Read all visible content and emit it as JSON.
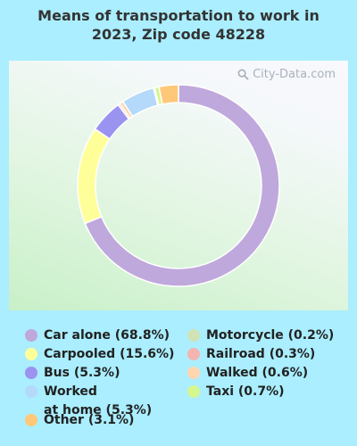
{
  "title_lines": [
    "Means of transportation to work in",
    "2023, Zip code 48228"
  ],
  "watermark": "City-Data.com",
  "chart_data": {
    "type": "pie",
    "title": "Means of transportation to work in 2023, Zip code 48228",
    "donut": true,
    "legend_position": "bottom",
    "slices": [
      {
        "label": "Car alone",
        "value": 68.8,
        "color": "#bfa8db",
        "legend": "Car alone (68.8%)"
      },
      {
        "label": "Carpooled",
        "value": 15.6,
        "color": "#ffff99",
        "legend": "Carpooled (15.6%)"
      },
      {
        "label": "Bus",
        "value": 5.3,
        "color": "#9b93f0",
        "legend": "Bus (5.3%)"
      },
      {
        "label": "Railroad",
        "value": 0.3,
        "color": "#f4b4b0",
        "legend": "Railroad (0.3%)"
      },
      {
        "label": "Walked",
        "value": 0.6,
        "color": "#ffd6b0",
        "legend": "Walked (0.6%)"
      },
      {
        "label": "Worked at home",
        "value": 5.3,
        "color": "#b4d9fa",
        "legend": "Worked\nat home (5.3%)"
      },
      {
        "label": "Motorcycle",
        "value": 0.2,
        "color": "#cfe3b4",
        "legend": "Motorcycle (0.2%)"
      },
      {
        "label": "Taxi",
        "value": 0.7,
        "color": "#d5f78f",
        "legend": "Taxi (0.7%)"
      },
      {
        "label": "Other",
        "value": 3.1,
        "color": "#ffc878",
        "legend": "Other (3.1%)"
      }
    ]
  },
  "legend_order": [
    0,
    1,
    2,
    5,
    8,
    6,
    3,
    4,
    7
  ]
}
